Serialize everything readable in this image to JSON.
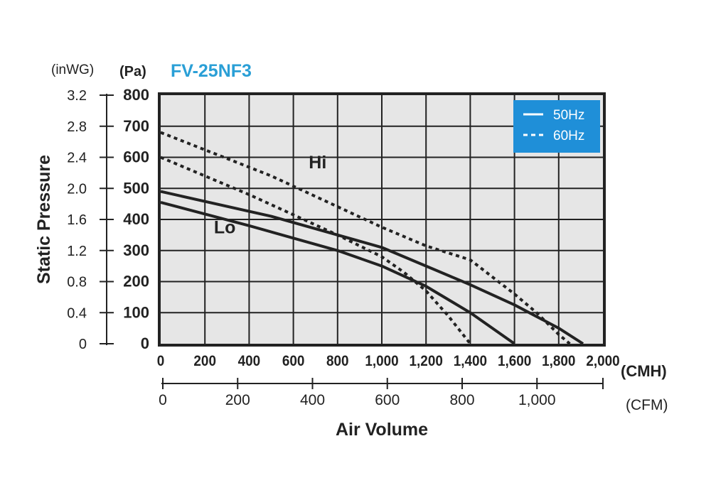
{
  "chart_data": {
    "type": "line",
    "title": "FV-25NF3",
    "ylabel": "Static Pressure",
    "xlabel": "Air Volume",
    "y_units": {
      "primary": "(Pa)",
      "secondary": "(inWG)"
    },
    "x_units": {
      "primary": "(CMH)",
      "secondary": "(CFM)"
    },
    "xlim": [
      0,
      2000
    ],
    "ylim": [
      0,
      800
    ],
    "grid": true,
    "legend": {
      "placement": "top-right",
      "entries": [
        "50Hz",
        "60Hz"
      ]
    },
    "x_ticks_cmh": [
      "0",
      "200",
      "400",
      "600",
      "800",
      "1,000",
      "1,200",
      "1,400",
      "1,600",
      "1,800",
      "2,000"
    ],
    "x_ticks_cfm": [
      "0",
      "200",
      "400",
      "600",
      "800",
      "1,000"
    ],
    "x_ticks_cfm_values": [
      0,
      200,
      400,
      600,
      800,
      1000
    ],
    "y_ticks_pa": [
      "0",
      "100",
      "200",
      "300",
      "400",
      "500",
      "600",
      "700",
      "800"
    ],
    "y_ticks_inwg": [
      "0",
      "0.4",
      "0.8",
      "1.2",
      "1.6",
      "2.0",
      "2.4",
      "2.8",
      "3.2"
    ],
    "curve_labels": [
      {
        "text": "Hi",
        "x": 710,
        "y": 565
      },
      {
        "text": "Lo",
        "x": 290,
        "y": 355
      }
    ],
    "series": [
      {
        "legend": "50Hz",
        "style": "solid",
        "x": [
          0,
          500,
          1000,
          1200,
          1400,
          1600,
          1800,
          1910
        ],
        "y": [
          490,
          410,
          310,
          250,
          190,
          125,
          50,
          0
        ]
      },
      {
        "legend": "50Hz",
        "style": "solid",
        "x": [
          0,
          400,
          800,
          1000,
          1200,
          1400,
          1600
        ],
        "y": [
          455,
          380,
          300,
          250,
          185,
          100,
          0
        ]
      },
      {
        "legend": "60Hz",
        "style": "dashed",
        "x": [
          0,
          500,
          1000,
          1200,
          1400,
          1600,
          1700,
          1800,
          1850
        ],
        "y": [
          680,
          540,
          375,
          315,
          270,
          160,
          100,
          30,
          0
        ]
      },
      {
        "legend": "60Hz",
        "style": "dashed",
        "x": [
          0,
          400,
          800,
          1000,
          1100,
          1200,
          1300,
          1400
        ],
        "y": [
          600,
          480,
          350,
          280,
          230,
          170,
          90,
          0
        ]
      }
    ]
  },
  "colors": {
    "title": "#2a9fd6",
    "legend_bg": "#1f8fd8",
    "plot_bg": "#e6e6e6",
    "line": "#222222"
  }
}
